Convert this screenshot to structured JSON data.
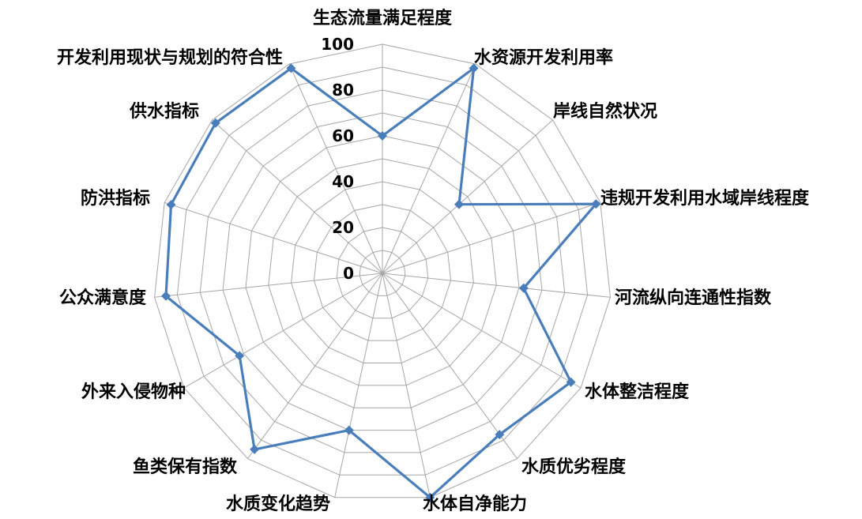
{
  "chart_data": {
    "type": "radar",
    "categories": [
      "生态流量满足程度",
      "水资源开发利用率",
      "岸线自然状况",
      "违规开发利用水域岸线程度",
      "河流纵向连通性指数",
      "水体整洁程度",
      "水质优劣程度",
      "水体自净能力",
      "水质变化趋势",
      "鱼类保有指数",
      "外来入侵物种",
      "公众满意度",
      "防洪指标",
      "供水指标",
      "开发利用现状与规划的符合性"
    ],
    "series": [
      {
        "values": [
          60,
          98,
          45,
          98,
          62,
          95,
          87,
          100,
          70,
          95,
          72,
          95,
          97,
          98,
          98
        ]
      }
    ],
    "rlim": [
      0,
      100
    ],
    "ticks": [
      "0",
      "20",
      "40",
      "60",
      "80",
      "100"
    ],
    "tick_values": [
      0,
      20,
      40,
      60,
      80,
      100
    ],
    "grid": true,
    "legend": "none",
    "colors": {
      "series": "#4a7ebb",
      "grid": "#a6a6a6"
    }
  }
}
